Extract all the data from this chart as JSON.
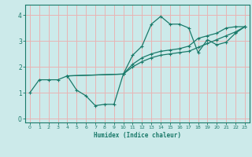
{
  "xlabel": "Humidex (Indice chaleur)",
  "xlim": [
    -0.5,
    23.5
  ],
  "ylim": [
    -0.15,
    4.4
  ],
  "xticks": [
    0,
    1,
    2,
    3,
    4,
    5,
    6,
    7,
    8,
    9,
    10,
    11,
    12,
    13,
    14,
    15,
    16,
    17,
    18,
    19,
    20,
    21,
    22,
    23
  ],
  "yticks": [
    0,
    1,
    2,
    3,
    4
  ],
  "bg_color": "#cceaea",
  "grid_color": "#e8b4b4",
  "line_color": "#1a7a6a",
  "series1_x": [
    0,
    1,
    2,
    3,
    4,
    5,
    6,
    7,
    8,
    9,
    10,
    11,
    12,
    13,
    14,
    15,
    16,
    17,
    18,
    19,
    20,
    21,
    22,
    23
  ],
  "series1_y": [
    1.0,
    1.5,
    1.5,
    1.5,
    1.65,
    1.1,
    0.88,
    0.5,
    0.55,
    0.55,
    1.72,
    2.45,
    2.8,
    3.65,
    3.95,
    3.65,
    3.65,
    3.5,
    2.55,
    3.05,
    2.85,
    2.95,
    3.3,
    3.55
  ],
  "series2_x": [
    4,
    10,
    11,
    12,
    13,
    14,
    15,
    16,
    17,
    18,
    19,
    20,
    21,
    22,
    23
  ],
  "series2_y": [
    1.65,
    1.72,
    2.1,
    2.35,
    2.5,
    2.6,
    2.65,
    2.7,
    2.8,
    3.1,
    3.2,
    3.3,
    3.5,
    3.55,
    3.55
  ],
  "series3_x": [
    4,
    10,
    11,
    12,
    13,
    14,
    15,
    16,
    17,
    18,
    19,
    20,
    21,
    22,
    23
  ],
  "series3_y": [
    1.65,
    1.72,
    2.0,
    2.2,
    2.35,
    2.45,
    2.5,
    2.55,
    2.6,
    2.75,
    2.9,
    3.05,
    3.2,
    3.35,
    3.55
  ]
}
